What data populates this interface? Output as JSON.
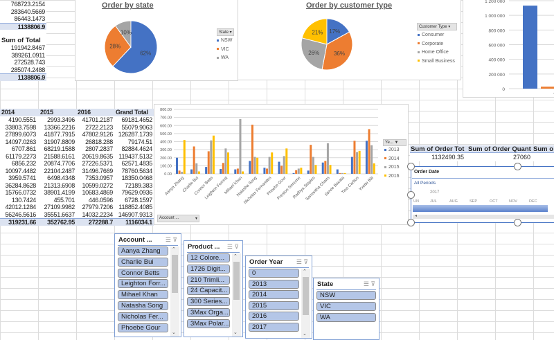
{
  "pivot_top": {
    "values1": [
      "768723.2154",
      "283640.5669",
      "86443.1473"
    ],
    "total1": "1138806.9",
    "header2": "Sum of Total",
    "values2": [
      "191942.8467",
      "389261.0911",
      "272528.743",
      "285074.2488"
    ],
    "total2": "1138806.9"
  },
  "pivot_years": {
    "headers": [
      "2014",
      "2015",
      "2016",
      "Grand Total"
    ],
    "rows": [
      [
        "4190.5551",
        "2993.3496",
        "41701.2187",
        "69181.4652"
      ],
      [
        "33803.7598",
        "13366.2216",
        "2722.2123",
        "55079.9063"
      ],
      [
        "27899.6073",
        "41877.7915",
        "47802.9126",
        "126287.1739"
      ],
      [
        "14097.0263",
        "31907.8809",
        "26818.288",
        "79174.51"
      ],
      [
        "6707.861",
        "68219.1588",
        "2807.2837",
        "82884.4624"
      ],
      [
        "61179.2273",
        "21588.6161",
        "20619.8635",
        "119437.5132"
      ],
      [
        "6856.232",
        "20874.7706",
        "27226.5371",
        "62571.4835"
      ],
      [
        "10097.4482",
        "22104.2487",
        "31496.7669",
        "78760.5634"
      ],
      [
        "3959.5741",
        "6498.4348",
        "7353.0957",
        "18350.0468"
      ],
      [
        "36284.8628",
        "21313.6908",
        "10599.0272",
        "72189.383"
      ],
      [
        "15766.0732",
        "38901.4199",
        "10683.4869",
        "79629.0936"
      ],
      [
        "130.7424",
        "455.701",
        "446.0596",
        "6728.1597"
      ],
      [
        "42012.1284",
        "27109.9982",
        "27979.7206",
        "118852.4085"
      ],
      [
        "56246.5616",
        "35551.6637",
        "14032.2234",
        "146907.9313"
      ]
    ],
    "totals": [
      "319231.66",
      "352762.95",
      "272288.7",
      "1116034.1"
    ]
  },
  "colors": {
    "blue": "#4472c4",
    "orange": "#ed7d31",
    "gray": "#a5a5a5",
    "yellow": "#ffc000"
  },
  "pie_state": {
    "title": "Order by state",
    "legend_button": "State",
    "slices": [
      {
        "label": "NSW",
        "pct": 62,
        "text": "62%"
      },
      {
        "label": "VIC",
        "pct": 28,
        "text": "28%"
      },
      {
        "label": "WA",
        "pct": 10,
        "text": "10%"
      }
    ]
  },
  "pie_customer": {
    "title": "Order by customer type",
    "legend_button": "Customer Type",
    "slices": [
      {
        "label": "Consumer",
        "pct": 17,
        "text": "17%"
      },
      {
        "label": "Corporate",
        "pct": 36,
        "text": "36%"
      },
      {
        "label": "Home Office",
        "pct": 26,
        "text": "26%"
      },
      {
        "label": "Small Business",
        "pct": 21,
        "text": "21%"
      }
    ]
  },
  "chart_data": [
    {
      "type": "bar",
      "title": "",
      "yticks": [
        "0",
        "200000",
        "400000",
        "600000",
        "800000",
        "1000000",
        "1200000"
      ],
      "ylim": [
        0,
        1200000
      ],
      "categories": [
        "T"
      ],
      "series": [
        {
          "name": "Sum of Order Total",
          "values": [
            1132490.35
          ]
        },
        {
          "name": "Sum of Order Quantity",
          "values": [
            27060
          ]
        }
      ]
    },
    {
      "type": "bar",
      "yticks": [
        "0.00",
        "100.00",
        "200.00",
        "300.00",
        "400.00",
        "500.00",
        "600.00",
        "700.00",
        "800.00"
      ],
      "ylim": [
        0,
        800
      ],
      "legend_button": "Ye...",
      "filter_button": "Account ...",
      "categories": [
        "Aanya Zhang",
        "Charlie Bui",
        "Connor Betts",
        "Leighton Forrest",
        "Mihael Khan",
        "Natasha Song",
        "Nicholas Fernandes",
        "Phoebe Gour",
        "Preston Senome",
        "Radhya Staples",
        "Samantha Chairs",
        "Stevie Bacata",
        "Tina Carlton",
        "Yvette Biti"
      ],
      "series": [
        {
          "name": "2013",
          "values": [
            200,
            55,
            85,
            60,
            55,
            160,
            75,
            150,
            10,
            40,
            140,
            55,
            210,
            410
          ]
        },
        {
          "name": "2014",
          "values": [
            40,
            340,
            280,
            135,
            65,
            610,
            65,
            100,
            45,
            360,
            160,
            10,
            410,
            555
          ]
        },
        {
          "name": "2015",
          "values": [
            25,
            130,
            415,
            315,
            680,
            210,
            210,
            220,
            65,
            210,
            380,
            10,
            270,
            355
          ]
        },
        {
          "name": "2016",
          "values": [
            420,
            30,
            475,
            265,
            30,
            200,
            265,
            315,
            75,
            110,
            110,
            10,
            285,
            130
          ]
        }
      ]
    }
  ],
  "summary": {
    "headers": [
      "Sum of Order Tot",
      "Sum of Order Quant",
      "Sum o"
    ],
    "values": [
      "1132490.35",
      "27060"
    ]
  },
  "timeline": {
    "title": "Order Date",
    "periods": "All Periods",
    "year": "2017",
    "months": [
      "UN",
      "JUL",
      "AUG",
      "SEP",
      "OCT",
      "NOV",
      "DEC"
    ]
  },
  "slicers": {
    "account": {
      "title": "Account ...",
      "items": [
        "Aanya Zhang",
        "Charlie Bui",
        "Connor Betts",
        "Leighton Forr...",
        "Mihael Khan",
        "Natasha Song",
        "Nicholas Fer...",
        "Phoebe Gour"
      ]
    },
    "product": {
      "title": "Product ...",
      "items": [
        "12 Colore...",
        "1726 Digit...",
        "210 Trimli...",
        "24 Capacit...",
        "300 Series...",
        "3Max Orga...",
        "3Max Polar..."
      ]
    },
    "year": {
      "title": "Order Year",
      "items": [
        "0",
        "2013",
        "2014",
        "2015",
        "2016",
        "2017"
      ]
    },
    "state": {
      "title": "State",
      "items": [
        "NSW",
        "VIC",
        "WA"
      ]
    }
  }
}
